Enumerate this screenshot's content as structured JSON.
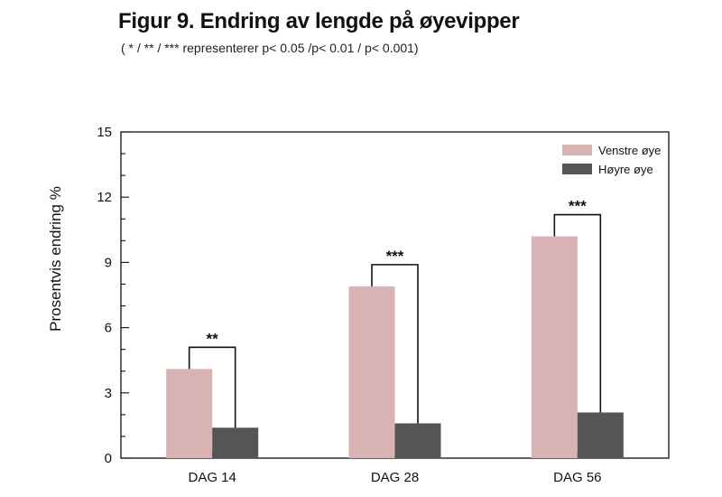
{
  "chart_data": {
    "type": "bar",
    "title": "Figur 9. Endring av lengde på øyevipper",
    "subtitle": "( * / ** / *** representerer p< 0.05 /p< 0.01 / p< 0.001)",
    "ylabel": "Prosentvis endring %",
    "xlabel": "",
    "ylim": [
      0,
      15
    ],
    "yticks": [
      0,
      3,
      6,
      9,
      12,
      15
    ],
    "categories": [
      "DAG 14",
      "DAG 28",
      "DAG 56"
    ],
    "series": [
      {
        "name": "Venstre øye",
        "color": "#d9b3b3",
        "values": [
          4.1,
          7.9,
          10.2
        ]
      },
      {
        "name": "Høyre øye",
        "color": "#555555",
        "values": [
          1.4,
          1.6,
          2.1
        ]
      }
    ],
    "significance": [
      "**",
      "***",
      "***"
    ],
    "legend_position": "top-right",
    "grid": false
  }
}
